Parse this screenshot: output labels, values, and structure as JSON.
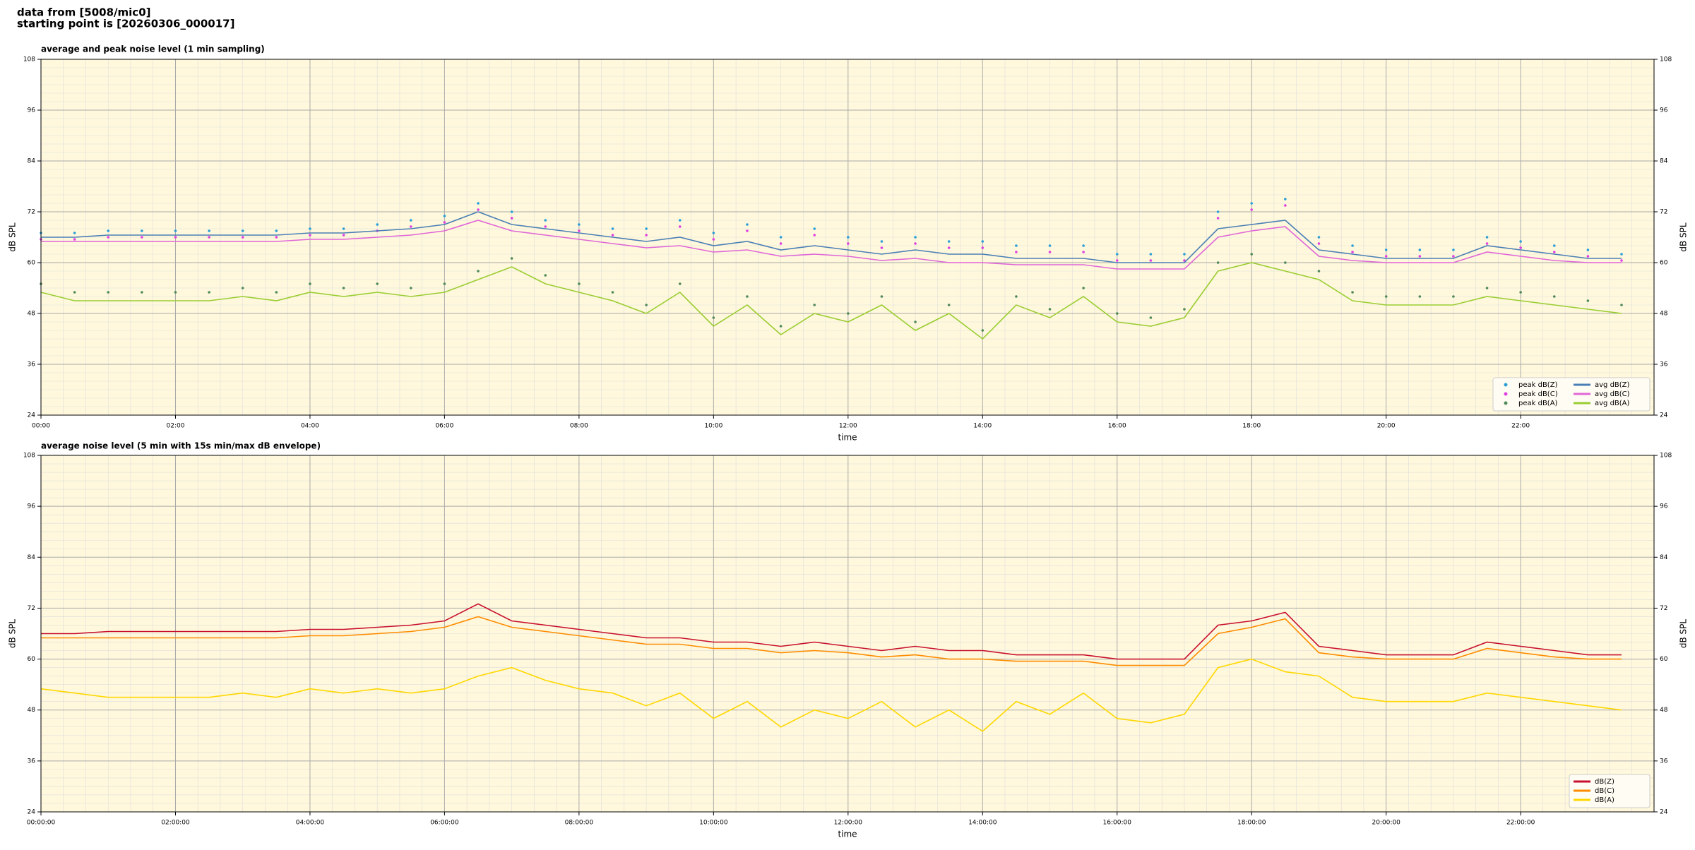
{
  "header": {
    "line1": "data from [5008/mic0]",
    "line2": "starting point is [20260306_000017]"
  },
  "chart_data": [
    {
      "type": "line",
      "title": "average and peak noise level (1 min sampling)",
      "x_label": "time",
      "y_label": "dB SPL",
      "xlim": [
        0,
        23.983
      ],
      "ylim": [
        24,
        108
      ],
      "yticks": [
        24,
        36,
        48,
        60,
        72,
        84,
        96,
        108
      ],
      "xticks": [
        {
          "value": 0,
          "label": "00:00"
        },
        {
          "value": 2,
          "label": "02:00"
        },
        {
          "value": 4,
          "label": "04:00"
        },
        {
          "value": 6,
          "label": "06:00"
        },
        {
          "value": 8,
          "label": "08:00"
        },
        {
          "value": 10,
          "label": "10:00"
        },
        {
          "value": 12,
          "label": "12:00"
        },
        {
          "value": 14,
          "label": "14:00"
        },
        {
          "value": 16,
          "label": "16:00"
        },
        {
          "value": 18,
          "label": "18:00"
        },
        {
          "value": 20,
          "label": "20:00"
        },
        {
          "value": 22,
          "label": "22:00"
        }
      ],
      "grid": true,
      "background": "#fff8dc",
      "legend": "lower right",
      "legend_columns": 2,
      "x": [
        0,
        0.5,
        1,
        1.5,
        2,
        2.5,
        3,
        3.5,
        4,
        4.5,
        5,
        5.5,
        6,
        6.5,
        7,
        7.5,
        8,
        8.5,
        9,
        9.5,
        10,
        10.5,
        11,
        11.5,
        12,
        12.5,
        13,
        13.5,
        14,
        14.5,
        15,
        15.5,
        16,
        16.5,
        17,
        17.5,
        18,
        18.5,
        19,
        19.5,
        20,
        20.5,
        21,
        21.5,
        22,
        22.5,
        23,
        23.5
      ],
      "series": [
        {
          "name": "peak dB(Z)",
          "kind": "scatter",
          "color": "#2b9fd8",
          "values": [
            67,
            67,
            67.5,
            67.5,
            67.5,
            67.5,
            67.5,
            67.5,
            68,
            68,
            69,
            70,
            71,
            74,
            72,
            70,
            69,
            68,
            68,
            70,
            67,
            69,
            66,
            68,
            66,
            65,
            66,
            65,
            65,
            64,
            64,
            64,
            62,
            62,
            62,
            72,
            74,
            75,
            66,
            64,
            63,
            63,
            63,
            66,
            65,
            64,
            63,
            62
          ]
        },
        {
          "name": "peak dB(C)",
          "kind": "scatter",
          "color": "#e040e0",
          "values": [
            65.5,
            65.5,
            66,
            66,
            66,
            66,
            66,
            66,
            66.5,
            66.5,
            67.5,
            68.5,
            69.5,
            72.5,
            70.5,
            68.5,
            67.5,
            66.5,
            66.5,
            68.5,
            65.5,
            67.5,
            64.5,
            66.5,
            64.5,
            63.5,
            64.5,
            63.5,
            63.5,
            62.5,
            62.5,
            62.5,
            60.5,
            60.5,
            60.5,
            70.5,
            72.5,
            73.5,
            64.5,
            62.5,
            61.5,
            61.5,
            61.5,
            64.5,
            63.5,
            62.5,
            61.5,
            60.5
          ]
        },
        {
          "name": "peak dB(A)",
          "kind": "scatter",
          "color": "#4e8a5a",
          "values": [
            55,
            53,
            53,
            53,
            53,
            53,
            54,
            53,
            55,
            54,
            55,
            54,
            55,
            58,
            61,
            57,
            55,
            53,
            50,
            55,
            47,
            52,
            45,
            50,
            48,
            52,
            46,
            50,
            44,
            52,
            49,
            54,
            48,
            47,
            49,
            60,
            62,
            60,
            58,
            53,
            52,
            52,
            52,
            54,
            53,
            52,
            51,
            50
          ]
        },
        {
          "name": "avg dB(Z)",
          "kind": "line",
          "color": "#4a7fb5",
          "values": [
            66,
            66,
            66.5,
            66.5,
            66.5,
            66.5,
            66.5,
            66.5,
            67,
            67,
            67.5,
            68,
            69,
            72,
            69,
            68,
            67,
            66,
            65,
            66,
            64,
            65,
            63,
            64,
            63,
            62,
            63,
            62,
            62,
            61,
            61,
            61,
            60,
            60,
            60,
            68,
            69,
            70,
            63,
            62,
            61,
            61,
            61,
            64,
            63,
            62,
            61,
            61
          ]
        },
        {
          "name": "avg dB(C)",
          "kind": "line",
          "color": "#e066d8",
          "values": [
            65,
            65,
            65,
            65,
            65,
            65,
            65,
            65,
            65.5,
            65.5,
            66,
            66.5,
            67.5,
            70,
            67.5,
            66.5,
            65.5,
            64.5,
            63.5,
            64,
            62.5,
            63,
            61.5,
            62,
            61.5,
            60.5,
            61,
            60,
            60,
            59.5,
            59.5,
            59.5,
            58.5,
            58.5,
            58.5,
            66,
            67.5,
            68.5,
            61.5,
            60.5,
            60,
            60,
            60,
            62.5,
            61.5,
            60.5,
            60,
            60
          ]
        },
        {
          "name": "avg dB(A)",
          "kind": "line",
          "color": "#9acd32",
          "values": [
            53,
            51,
            51,
            51,
            51,
            51,
            52,
            51,
            53,
            52,
            53,
            52,
            53,
            56,
            59,
            55,
            53,
            51,
            48,
            53,
            45,
            50,
            43,
            48,
            46,
            50,
            44,
            48,
            42,
            50,
            47,
            52,
            46,
            45,
            47,
            58,
            60,
            58,
            56,
            51,
            50,
            50,
            50,
            52,
            51,
            50,
            49,
            48
          ]
        }
      ]
    },
    {
      "type": "line",
      "title": "average noise level (5 min with 15s min/max dB envelope)",
      "x_label": "time",
      "y_label": "dB SPL",
      "xlim": [
        0,
        23.983
      ],
      "ylim": [
        24,
        108
      ],
      "yticks": [
        24,
        36,
        48,
        60,
        72,
        84,
        96,
        108
      ],
      "xticks": [
        {
          "value": 0,
          "label": "00:00:00"
        },
        {
          "value": 2,
          "label": "02:00:00"
        },
        {
          "value": 4,
          "label": "04:00:00"
        },
        {
          "value": 6,
          "label": "06:00:00"
        },
        {
          "value": 8,
          "label": "08:00:00"
        },
        {
          "value": 10,
          "label": "10:00:00"
        },
        {
          "value": 12,
          "label": "12:00:00"
        },
        {
          "value": 14,
          "label": "14:00:00"
        },
        {
          "value": 16,
          "label": "16:00:00"
        },
        {
          "value": 18,
          "label": "18:00:00"
        },
        {
          "value": 20,
          "label": "20:00:00"
        },
        {
          "value": 22,
          "label": "22:00:00"
        }
      ],
      "grid": true,
      "background": "#fff8dc",
      "legend": "lower right",
      "legend_columns": 1,
      "x": [
        0,
        0.5,
        1,
        1.5,
        2,
        2.5,
        3,
        3.5,
        4,
        4.5,
        5,
        5.5,
        6,
        6.5,
        7,
        7.5,
        8,
        8.5,
        9,
        9.5,
        10,
        10.5,
        11,
        11.5,
        12,
        12.5,
        13,
        13.5,
        14,
        14.5,
        15,
        15.5,
        16,
        16.5,
        17,
        17.5,
        18,
        18.5,
        19,
        19.5,
        20,
        20.5,
        21,
        21.5,
        22,
        22.5,
        23,
        23.5
      ],
      "series": [
        {
          "name": "dB(Z)",
          "kind": "line",
          "color": "#c8102e",
          "values": [
            66,
            66,
            66.5,
            66.5,
            66.5,
            66.5,
            66.5,
            66.5,
            67,
            67,
            67.5,
            68,
            69,
            73,
            69,
            68,
            67,
            66,
            65,
            65,
            64,
            64,
            63,
            64,
            63,
            62,
            63,
            62,
            62,
            61,
            61,
            61,
            60,
            60,
            60,
            68,
            69,
            71,
            63,
            62,
            61,
            61,
            61,
            64,
            63,
            62,
            61,
            61
          ]
        },
        {
          "name": "dB(C)",
          "kind": "line",
          "color": "#ff8c00",
          "values": [
            65,
            65,
            65,
            65,
            65,
            65,
            65,
            65,
            65.5,
            65.5,
            66,
            66.5,
            67.5,
            70,
            67.5,
            66.5,
            65.5,
            64.5,
            63.5,
            63.5,
            62.5,
            62.5,
            61.5,
            62,
            61.5,
            60.5,
            61,
            60,
            60,
            59.5,
            59.5,
            59.5,
            58.5,
            58.5,
            58.5,
            66,
            67.5,
            69.5,
            61.5,
            60.5,
            60,
            60,
            60,
            62.5,
            61.5,
            60.5,
            60,
            60
          ]
        },
        {
          "name": "dB(A)",
          "kind": "line",
          "color": "#ffd700",
          "values": [
            53,
            52,
            51,
            51,
            51,
            51,
            52,
            51,
            53,
            52,
            53,
            52,
            53,
            56,
            58,
            55,
            53,
            52,
            49,
            52,
            46,
            50,
            44,
            48,
            46,
            50,
            44,
            48,
            43,
            50,
            47,
            52,
            46,
            45,
            47,
            58,
            60,
            57,
            56,
            51,
            50,
            50,
            50,
            52,
            51,
            50,
            49,
            48
          ]
        }
      ]
    }
  ]
}
